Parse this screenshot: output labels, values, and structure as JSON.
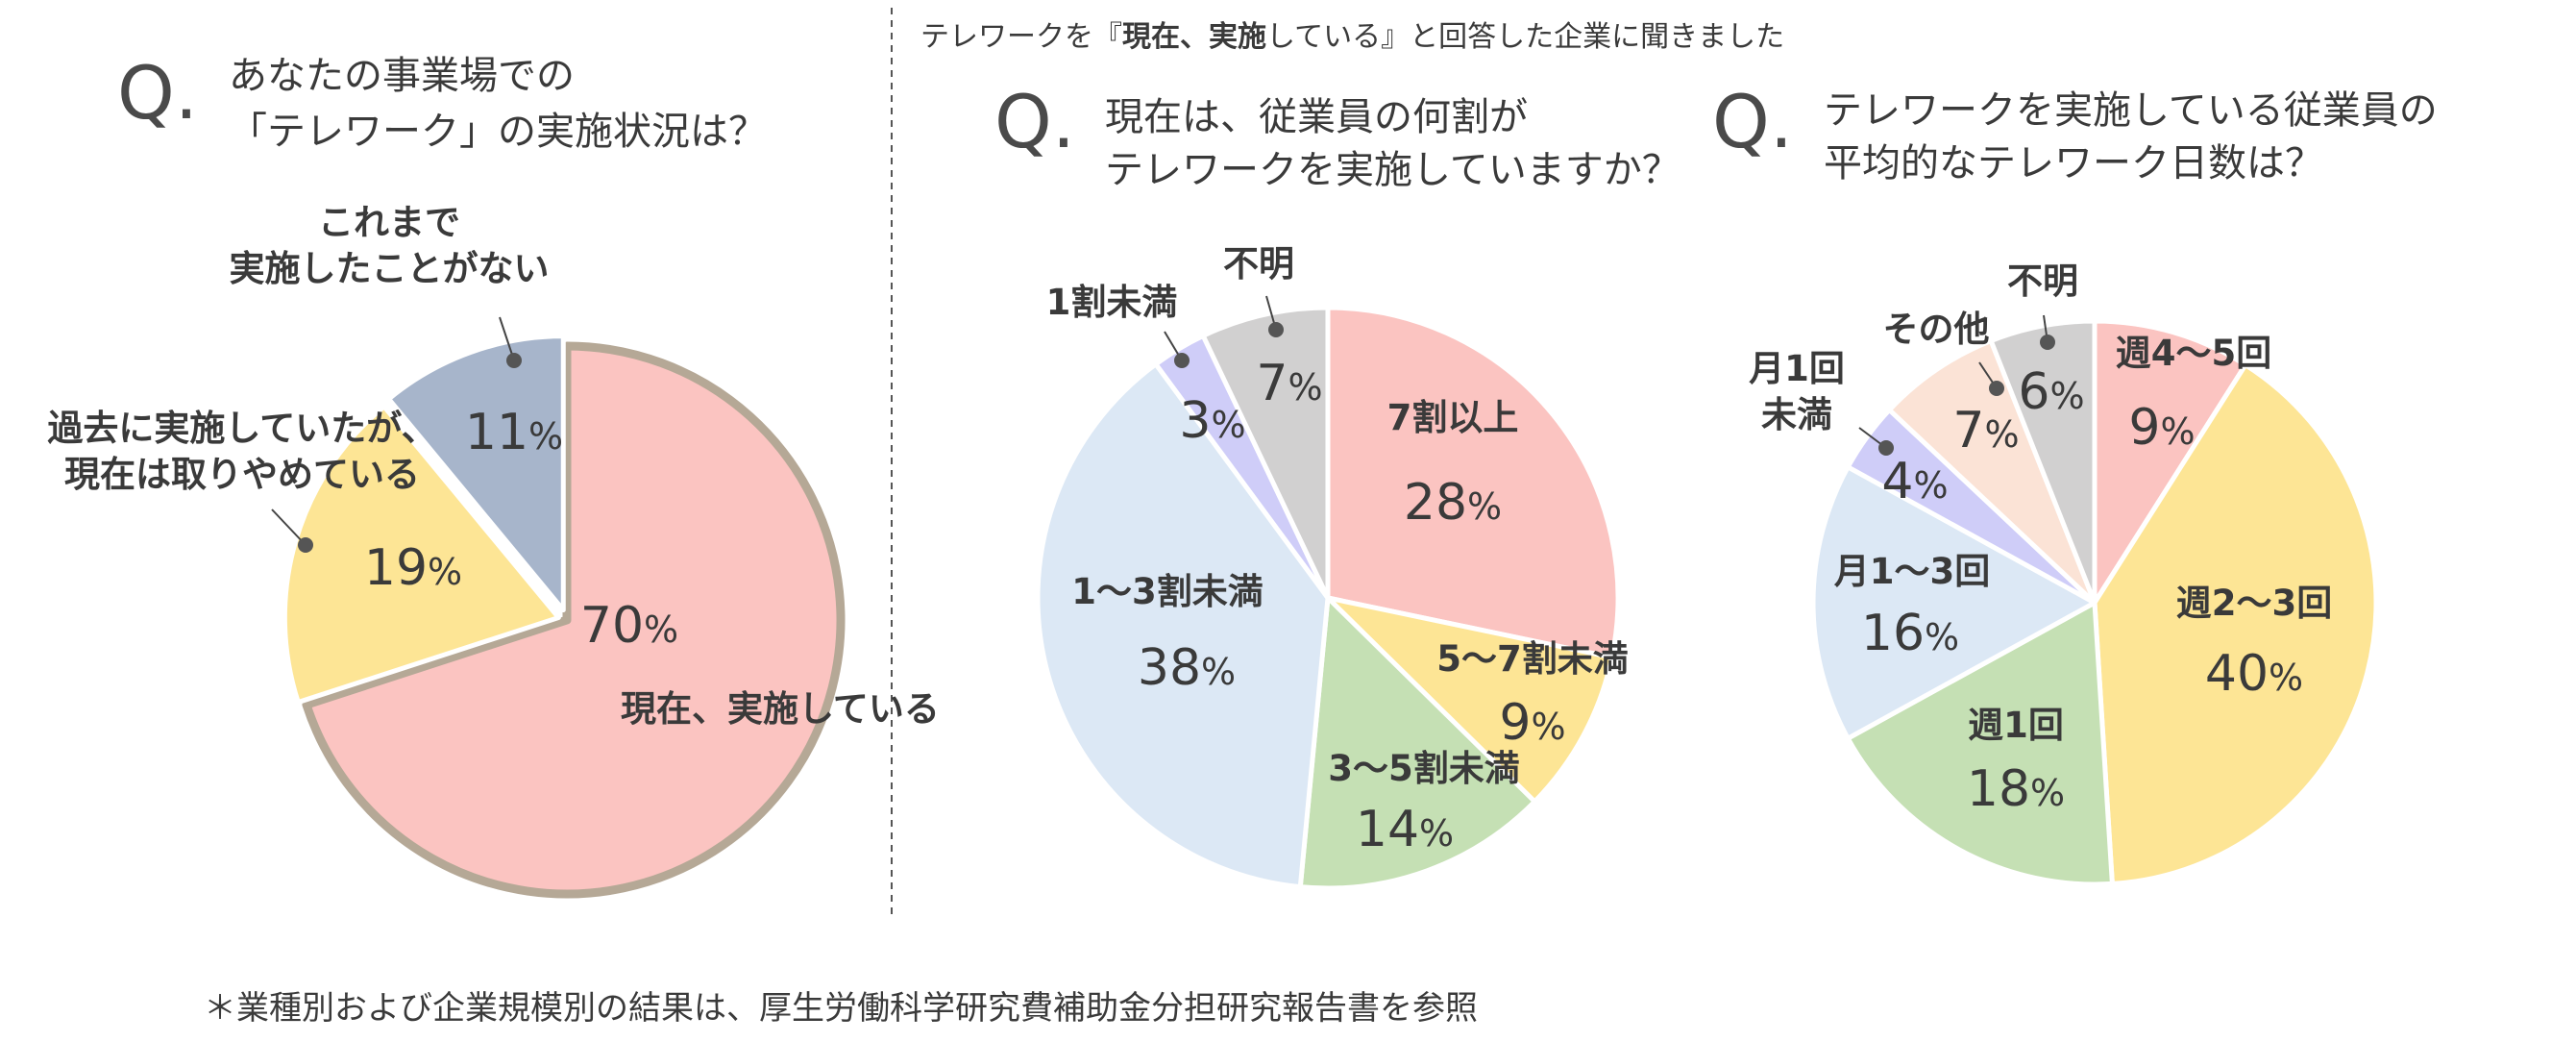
{
  "header_note": {
    "pre": "テレワークを『",
    "bold": "現在、実施",
    "post": "している』と回答した企業に聞きました"
  },
  "footnote": "＊業種別および企業規模別の結果は、厚生労働科学研究費補助金分担研究報告書を参照",
  "questions": [
    {
      "q": "Q.",
      "lines": [
        "あなたの事業場での",
        "「テレワーク」の実施状況は？"
      ]
    },
    {
      "q": "Q.",
      "lines": [
        "現在は、従業員の何割が",
        "テレワークを実施していますか？"
      ]
    },
    {
      "q": "Q.",
      "lines": [
        "テレワークを実施している従業員の",
        "平均的なテレワーク日数は？"
      ]
    }
  ],
  "chart_data": [
    {
      "type": "pie",
      "title": "",
      "categories": [
        "現在、実施している",
        "過去に実施していたが、現在は取りやめている",
        "これまで実施したことがない"
      ],
      "label_lines": [
        [
          "現在、実施している"
        ],
        [
          "過去に実施していたが、",
          "現在は取りやめている"
        ],
        [
          "これまで",
          "実施したことがない"
        ]
      ],
      "values": [
        70,
        19,
        11
      ],
      "value_labels": [
        "70%",
        "19%",
        "11%"
      ],
      "colors": [
        "#fbc4c1",
        "#fde595",
        "#a7b5cb"
      ],
      "highlight_color": "#b5a896"
    },
    {
      "type": "pie",
      "title": "",
      "categories": [
        "7割以上",
        "5～7割未満",
        "3～5割未満",
        "1～3割未満",
        "1割未満",
        "不明"
      ],
      "label_lines": [
        [
          "7割以上"
        ],
        [
          "5～7割未満"
        ],
        [
          "3～5割未満"
        ],
        [
          "1～3割未満"
        ],
        [
          "1割未満"
        ],
        [
          "不明"
        ]
      ],
      "values": [
        28,
        9,
        14,
        38,
        3,
        7
      ],
      "value_labels": [
        "28%",
        "9%",
        "14%",
        "38%",
        "3%",
        "7%"
      ],
      "colors": [
        "#fbc4c1",
        "#fde595",
        "#c5e0b4",
        "#dce8f5",
        "#cfcdf8",
        "#d1d0d0"
      ]
    },
    {
      "type": "pie",
      "title": "",
      "categories": [
        "週4～5回",
        "週2～3回",
        "週1回",
        "月1～3回",
        "月1回未満",
        "その他",
        "不明"
      ],
      "label_lines": [
        [
          "週4～5回"
        ],
        [
          "週2～3回"
        ],
        [
          "週1回"
        ],
        [
          "月1～3回"
        ],
        [
          "月1回",
          "未満"
        ],
        [
          "その他"
        ],
        [
          "不明"
        ]
      ],
      "values": [
        9,
        40,
        18,
        16,
        4,
        7,
        6
      ],
      "value_labels": [
        "9%",
        "40%",
        "18%",
        "16%",
        "4%",
        "7%",
        "6%"
      ],
      "colors": [
        "#fbc4c1",
        "#fde595",
        "#c5e0b4",
        "#dce8f5",
        "#cfcdf8",
        "#fbe3d6",
        "#d1d0d0"
      ]
    }
  ]
}
